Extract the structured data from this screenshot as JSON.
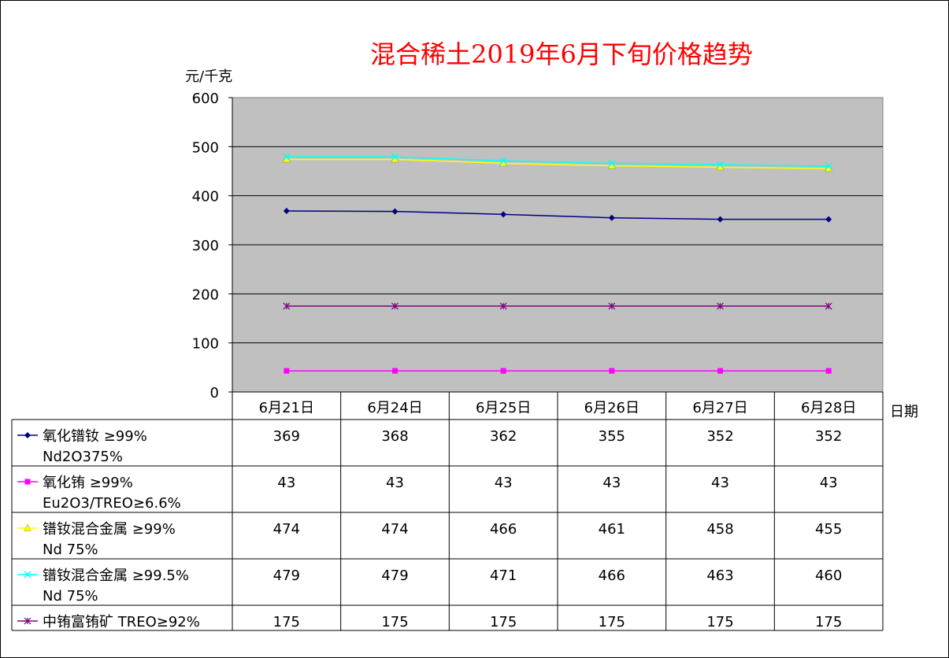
{
  "chart_data": {
    "type": "line",
    "title": "混合稀土2019年6月下旬价格趋势",
    "ylabel": "元/千克",
    "xlabel": "日期",
    "ylim": [
      0,
      600
    ],
    "yticks": [
      "0",
      "100",
      "200",
      "300",
      "400",
      "500",
      "600"
    ],
    "categories": [
      "6月21日",
      "6月24日",
      "6月25日",
      "6月26日",
      "6月27日",
      "6月28日"
    ],
    "grid": true,
    "legend": "data-table",
    "series": [
      {
        "name": "氧化镨钕 ≥99%",
        "name2": "Nd2O375%",
        "color": "#000080",
        "marker": "diamond",
        "values": [
          369,
          368,
          362,
          355,
          352,
          352
        ],
        "labels": [
          "369",
          "368",
          "362",
          "355",
          "352",
          "352"
        ]
      },
      {
        "name": "氧化铕 ≥99%",
        "name2": "Eu2O3/TREO≥6.6%",
        "color": "#ff00ff",
        "marker": "square",
        "values": [
          43,
          43,
          43,
          43,
          43,
          43
        ],
        "labels": [
          "43",
          "43",
          "43",
          "43",
          "43",
          "43"
        ]
      },
      {
        "name": "镨钕混合金属 ≥99%",
        "name2": "Nd 75%",
        "color": "#ffff00",
        "marker": "triangle",
        "values": [
          474,
          474,
          466,
          461,
          458,
          455
        ],
        "labels": [
          "474",
          "474",
          "466",
          "461",
          "458",
          "455"
        ]
      },
      {
        "name": "镨钕混合金属 ≥99.5%",
        "name2": "Nd  75%",
        "color": "#00ffff",
        "marker": "x",
        "values": [
          479,
          479,
          471,
          466,
          463,
          460
        ],
        "labels": [
          "479",
          "479",
          "471",
          "466",
          "463",
          "460"
        ]
      },
      {
        "name": "中铕富铕矿 TREO≥92%",
        "name2": "",
        "color": "#800080",
        "marker": "star",
        "values": [
          175,
          175,
          175,
          175,
          175,
          175
        ],
        "labels": [
          "175",
          "175",
          "175",
          "175",
          "175",
          "175"
        ]
      }
    ]
  },
  "colors": {
    "plot_background": "#c0c0c0",
    "title": "#ff0000",
    "gridline": "#000000"
  }
}
